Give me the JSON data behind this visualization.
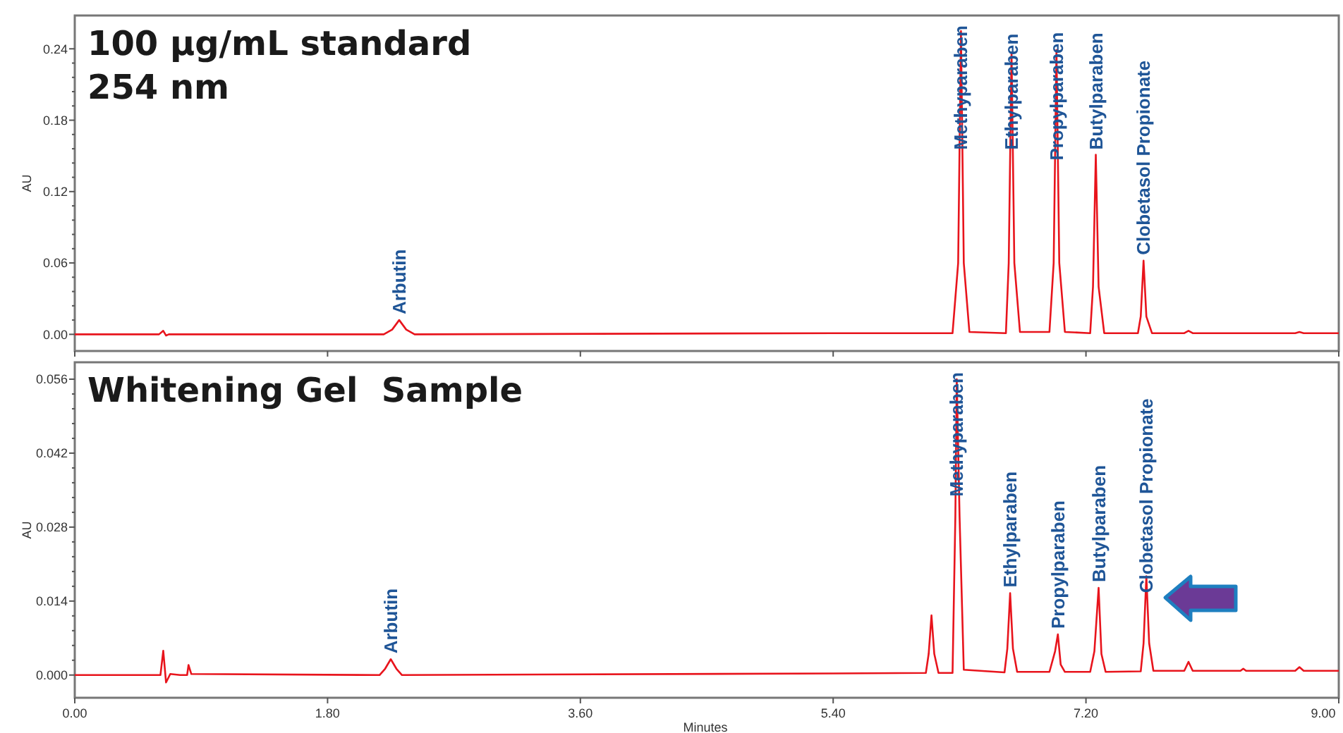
{
  "chart_data": [
    {
      "type": "line",
      "title": "100 µg/mL standard",
      "subtitle": "254 nm",
      "ylabel": "AU",
      "color": "#e8141c",
      "tick_labels": "y",
      "xlim": [
        0,
        9
      ],
      "xticks": [
        {
          "value": 0,
          "label": null
        },
        {
          "value": 1.8,
          "label": null
        },
        {
          "value": 3.6,
          "label": null
        },
        {
          "value": 5.4,
          "label": null
        },
        {
          "value": 7.2,
          "label": null
        },
        {
          "value": 9,
          "label": null
        }
      ],
      "ylim": [
        -0.014,
        0.268
      ],
      "yticks": [
        {
          "value": 0,
          "label": "0.00"
        },
        0.06,
        0.12,
        0.18,
        0.24
      ],
      "x": [
        0,
        0.6,
        0.63,
        0.65,
        0.67,
        2.2,
        2.26,
        2.31,
        2.36,
        2.42,
        5.4,
        6.25,
        6.29,
        6.31,
        6.33,
        6.37,
        6.63,
        6.65,
        6.67,
        6.69,
        6.73,
        6.94,
        6.97,
        6.99,
        7.01,
        7.05,
        7.23,
        7.25,
        7.27,
        7.29,
        7.33,
        7.57,
        7.59,
        7.61,
        7.63,
        7.67,
        7.9,
        7.93,
        7.96,
        8.69,
        8.72,
        8.75,
        9
      ],
      "values": [
        0,
        0,
        0.003,
        -0.001,
        0,
        0,
        0.004,
        0.012,
        0.004,
        0,
        0.001,
        0.001,
        0.06,
        0.255,
        0.06,
        0.002,
        0.001,
        0.06,
        0.237,
        0.06,
        0.002,
        0.002,
        0.06,
        0.239,
        0.06,
        0.002,
        0.001,
        0.04,
        0.151,
        0.04,
        0.001,
        0.001,
        0.015,
        0.062,
        0.015,
        0.001,
        0.001,
        0.003,
        0.001,
        0.001,
        0.002,
        0.001,
        0.001
      ],
      "annotations": [
        {
          "text": "Arbutin",
          "x": 2.31,
          "y": 0.012
        },
        {
          "text": "Methyparaben",
          "x": 6.31,
          "y": 0.255
        },
        {
          "text": "Ethylparaben",
          "x": 6.67,
          "y": 0.237
        },
        {
          "text": "Propylparaben",
          "x": 6.99,
          "y": 0.239
        },
        {
          "text": "Butylparaben",
          "x": 7.27,
          "y": 0.151
        },
        {
          "text": "Clobetasol Propionate",
          "x": 7.61,
          "y": 0.062
        }
      ]
    },
    {
      "type": "line",
      "title": "Whitening Gel  Sample",
      "xlabel": "Minutes",
      "ylabel": "AU",
      "color": "#e8141c",
      "xlim": [
        0,
        9
      ],
      "xticks": [
        {
          "value": 0,
          "label": "0.00"
        },
        {
          "value": 1.8,
          "label": "1.80"
        },
        {
          "value": 3.6,
          "label": "3.60"
        },
        {
          "value": 5.4,
          "label": "5.40"
        },
        {
          "value": 7.2,
          "label": "7.20"
        },
        {
          "value": 9,
          "label": "9.00"
        }
      ],
      "ylim": [
        -0.0043,
        0.0592
      ],
      "yticks": [
        {
          "value": 0,
          "label": "0.000"
        },
        0.014,
        0.028,
        0.042,
        0.056
      ],
      "x": [
        0,
        0.61,
        0.63,
        0.65,
        0.68,
        0.75,
        0.8,
        0.81,
        0.83,
        2.17,
        2.21,
        2.25,
        2.29,
        2.33,
        5.4,
        6.06,
        6.08,
        6.1,
        6.12,
        6.15,
        6.25,
        6.27,
        6.28,
        6.3,
        6.33,
        6.62,
        6.64,
        6.66,
        6.68,
        6.71,
        6.94,
        6.98,
        7,
        7.02,
        7.05,
        7.23,
        7.26,
        7.29,
        7.31,
        7.34,
        7.59,
        7.61,
        7.63,
        7.65,
        7.68,
        7.9,
        7.93,
        7.96,
        8.3,
        8.32,
        8.34,
        8.69,
        8.72,
        8.75,
        9
      ],
      "values": [
        0,
        0,
        0.0046,
        -0.0014,
        0.0002,
        0,
        0,
        0.0019,
        0.0002,
        0,
        0.0012,
        0.003,
        0.0012,
        0,
        0.0003,
        0.0004,
        0.004,
        0.0113,
        0.004,
        0.0004,
        0.0004,
        0.03,
        0.056,
        0.03,
        0.001,
        0.0005,
        0.005,
        0.0155,
        0.005,
        0.0006,
        0.0006,
        0.0045,
        0.0077,
        0.002,
        0.0006,
        0.0006,
        0.0045,
        0.0165,
        0.004,
        0.0006,
        0.0007,
        0.006,
        0.0187,
        0.006,
        0.0008,
        0.0008,
        0.0025,
        0.0008,
        0.0008,
        0.0012,
        0.0008,
        0.0008,
        0.0015,
        0.0008,
        0.0008
      ],
      "annotations": [
        {
          "text": "Arbutin",
          "x": 2.25,
          "y": 0.003
        },
        {
          "text": "Methyparaben",
          "x": 6.28,
          "y": 0.056
        },
        {
          "text": "Ethylparaben",
          "x": 6.66,
          "y": 0.0155
        },
        {
          "text": "Propylparaben",
          "x": 7,
          "y": 0.0077
        },
        {
          "text": "Butylparaben",
          "x": 7.29,
          "y": 0.0165
        },
        {
          "text": "Clobetasol Propionate",
          "x": 7.63,
          "y": 0.0187
        }
      ]
    }
  ]
}
